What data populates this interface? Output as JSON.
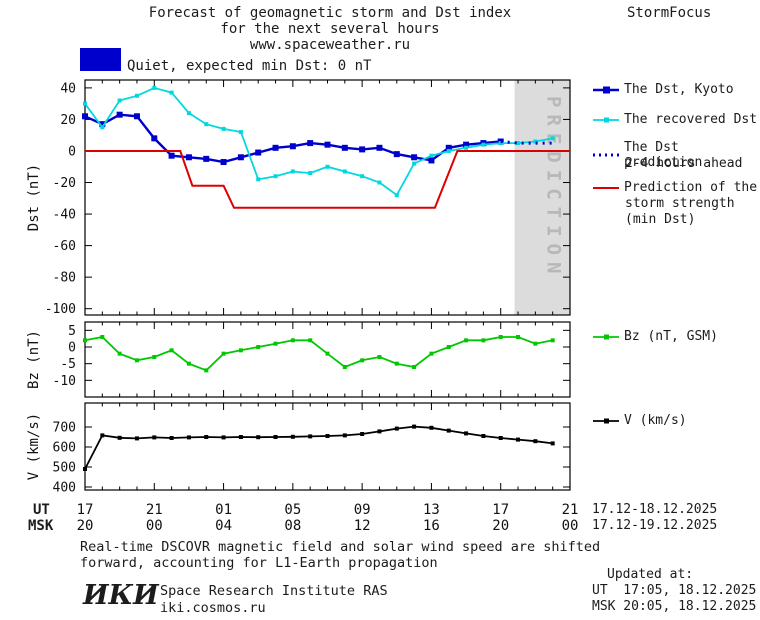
{
  "header": {
    "line1": "Forecast of geomagnetic storm and Dst index",
    "line2": "for the next several hours",
    "url": "www.spaceweather.ru",
    "brand": "StormFocus"
  },
  "status": {
    "label": "Quiet, expected min Dst: 0 nT"
  },
  "legends": {
    "kyoto": "The Dst, Kyoto",
    "recovered": "The recovered Dst",
    "prediction_1": "The Dst prediction",
    "prediction_2": "2-4 hours ahead",
    "storm_1": "Prediction of the",
    "storm_2": "storm strength",
    "storm_3": "(min Dst)",
    "bz": "Bz (nT, GSM)",
    "v": "V (km/s)"
  },
  "axes": {
    "ut_label": "UT",
    "msk_label": "MSK",
    "ut_ticks": [
      "17",
      "21",
      "01",
      "05",
      "09",
      "13",
      "17",
      "21"
    ],
    "msk_ticks": [
      "20",
      "00",
      "04",
      "08",
      "12",
      "16",
      "20",
      "00"
    ],
    "ut_date_range": "17.12-18.12.2025",
    "msk_date_range": "17.12-19.12.2025"
  },
  "footer": {
    "note1": "Real-time DSCOVR magnetic field and solar wind speed are shifted",
    "note2": "forward, accounting for L1-Earth propagation",
    "logo": "ИКИ",
    "institute": "Space Research Institute RAS",
    "site": "iki.cosmos.ru",
    "updated_label": "Updated at:",
    "updated_ut": "UT  17:05, 18.12.2025",
    "updated_msk": "MSK 20:05, 18.12.2025"
  },
  "colors": {
    "kyoto": "#0000cd",
    "recovered": "#00d8e0",
    "storm": "#dd0000",
    "bz": "#00c800",
    "v": "#000000",
    "band": "#dcdcdc",
    "band_text": "#b8b8b8",
    "status_box": "#0000cc"
  },
  "chart_data": [
    {
      "type": "line",
      "id": "dst",
      "title": "Forecast of geomagnetic storm and Dst index for the next several hours",
      "ylabel": "Dst (nT)",
      "x_axis": "UT hours from 17:00 17.12.2025 to 21:00 18.12.2025",
      "xlim": [
        0,
        28
      ],
      "ylim": [
        -104,
        45
      ],
      "yticks": [
        40,
        20,
        0,
        -20,
        -40,
        -60,
        -80,
        -100
      ],
      "prediction_band": {
        "x": [
          24.8,
          28
        ],
        "label": "PREDICTION"
      },
      "series": [
        {
          "id": "dst-kyoto",
          "name": "The Dst, Kyoto",
          "color_key": "kyoto",
          "marker": "square",
          "marker_size": 6,
          "width": 2.4,
          "x": [
            0,
            1,
            2,
            3,
            4,
            5,
            6,
            7,
            8,
            9,
            10,
            11,
            12,
            13,
            14,
            15,
            16,
            17,
            18,
            19,
            20,
            21,
            22,
            23,
            24
          ],
          "values": [
            22,
            17,
            23,
            22,
            8,
            -3,
            -4,
            -5,
            -7,
            -4,
            -1,
            2,
            3,
            5,
            4,
            2,
            1,
            2,
            -2,
            -4,
            -6,
            2,
            4,
            5,
            6
          ]
        },
        {
          "id": "recovered-dst",
          "name": "The recovered Dst",
          "color_key": "recovered",
          "marker": "square",
          "marker_size": 4,
          "width": 1.8,
          "x": [
            0,
            1,
            2,
            3,
            4,
            5,
            6,
            7,
            8,
            9,
            10,
            11,
            12,
            13,
            14,
            15,
            16,
            17,
            18,
            19,
            20,
            21,
            22,
            23,
            24,
            25,
            26,
            27
          ],
          "values": [
            30,
            15,
            32,
            35,
            40,
            37,
            24,
            17,
            14,
            12,
            -18,
            -16,
            -13,
            -14,
            -10,
            -13,
            -16,
            -20,
            -28,
            -8,
            -3,
            0,
            2,
            4,
            5,
            5,
            6,
            8
          ]
        },
        {
          "id": "dst-prediction",
          "name": "The Dst prediction 2-4 hours ahead",
          "color_key": "kyoto",
          "width": 3,
          "dash": "2 5",
          "x": [
            24,
            25,
            26,
            27
          ],
          "values": [
            6,
            5,
            5,
            5
          ]
        },
        {
          "id": "storm-prediction",
          "name": "Prediction of the storm strength (min Dst)",
          "color_key": "storm",
          "width": 2,
          "x": [
            0,
            5.5,
            6.2,
            8,
            8.6,
            20.2,
            21.5,
            28
          ],
          "values": [
            0,
            0,
            -22,
            -22,
            -36,
            -36,
            0,
            0
          ]
        }
      ]
    },
    {
      "type": "line",
      "id": "bz",
      "ylabel": "Bz (nT)",
      "xlim": [
        0,
        28
      ],
      "ylim": [
        -15,
        7.5
      ],
      "yticks": [
        5,
        0,
        -5,
        -10
      ],
      "series": [
        {
          "id": "bz",
          "name": "Bz (nT, GSM)",
          "color_key": "bz",
          "marker": "square",
          "marker_size": 4,
          "width": 1.8,
          "x": [
            0,
            1,
            2,
            3,
            4,
            5,
            6,
            7,
            8,
            9,
            10,
            11,
            12,
            13,
            14,
            15,
            16,
            17,
            18,
            19,
            20,
            21,
            22,
            23,
            24,
            25,
            26,
            27
          ],
          "values": [
            2,
            3,
            -2,
            -4,
            -3,
            -1,
            -5,
            -7,
            -2,
            -1,
            0,
            1,
            2,
            2,
            -2,
            -6,
            -4,
            -3,
            -5,
            -6,
            -2,
            0,
            2,
            2,
            3,
            3,
            1,
            2
          ]
        }
      ]
    },
    {
      "type": "line",
      "id": "v",
      "ylabel": "V (km/s)",
      "xlim": [
        0,
        28
      ],
      "ylim": [
        385,
        820
      ],
      "yticks": [
        700,
        600,
        500,
        400
      ],
      "series": [
        {
          "id": "v",
          "name": "V (km/s)",
          "color_key": "v",
          "marker": "square",
          "marker_size": 4,
          "width": 1.8,
          "x": [
            0,
            1,
            2,
            3,
            4,
            5,
            6,
            7,
            8,
            9,
            10,
            11,
            12,
            13,
            14,
            15,
            16,
            17,
            18,
            19,
            20,
            21,
            22,
            23,
            24,
            25,
            26,
            27
          ],
          "values": [
            490,
            658,
            646,
            643,
            648,
            645,
            648,
            650,
            648,
            650,
            649,
            650,
            651,
            653,
            655,
            658,
            665,
            678,
            692,
            702,
            696,
            682,
            668,
            655,
            645,
            637,
            629,
            618
          ]
        }
      ]
    }
  ]
}
